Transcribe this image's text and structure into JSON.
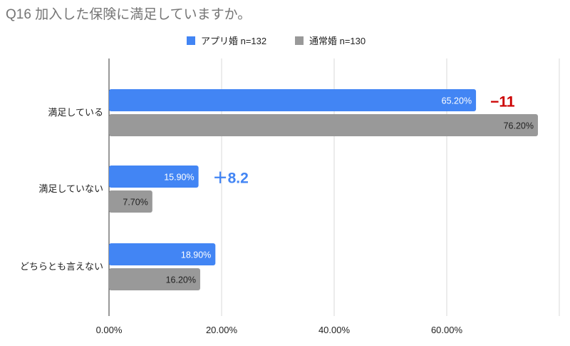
{
  "chart_data": {
    "type": "bar",
    "orientation": "horizontal",
    "title": "Q16 加入した保険に満足していますか。",
    "categories": [
      "満足している",
      "満足していない",
      "どちらとも言えない"
    ],
    "series": [
      {
        "name": "アプリ婚 n=132",
        "color": "#4285f4",
        "values": [
          65.2,
          15.9,
          18.9
        ],
        "labels": [
          "65.20%",
          "15.90%",
          "18.90%"
        ]
      },
      {
        "name": "通常婚 n=130",
        "color": "#999999",
        "values": [
          76.2,
          7.7,
          16.2
        ],
        "labels": [
          "76.20%",
          "7.70%",
          "16.20%"
        ]
      }
    ],
    "xlim": [
      0,
      80
    ],
    "xticks": [
      "0.00%",
      "20.00%",
      "40.00%",
      "60.00%"
    ],
    "xtick_values": [
      0,
      20,
      40,
      60
    ],
    "grid": true,
    "legend": "top-right",
    "annotations": [
      {
        "text": "−11",
        "category": "満足している",
        "color": "#cc0000"
      },
      {
        "text": "＋8.2",
        "category": "満足していない",
        "color": "#4285f4"
      }
    ]
  }
}
